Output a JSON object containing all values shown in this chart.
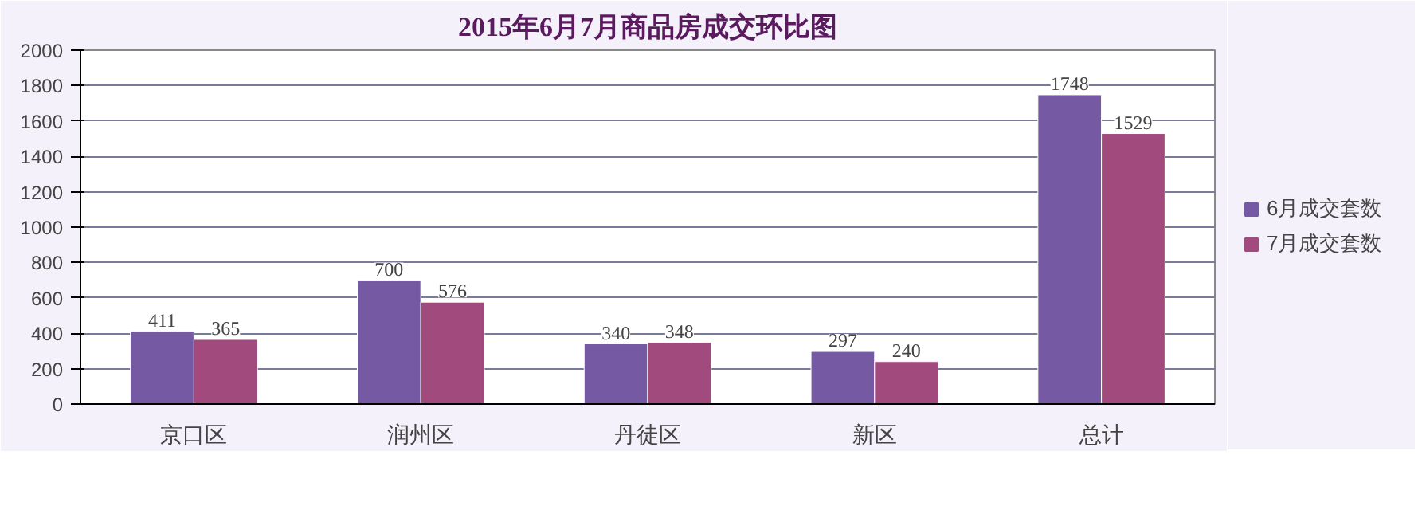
{
  "chart_data": {
    "type": "bar",
    "title": "2015年6月7月商品房成交环比图",
    "categories": [
      "京口区",
      "润州区",
      "丹徒区",
      "新区",
      "总计"
    ],
    "series": [
      {
        "name": "6月成交套数",
        "color": "#7559a3",
        "values": [
          411,
          700,
          340,
          297,
          1748
        ]
      },
      {
        "name": "7月成交套数",
        "color": "#a04a7e",
        "values": [
          365,
          576,
          348,
          240,
          1529
        ]
      }
    ],
    "ylim": [
      0,
      2000
    ],
    "yticks": [
      0,
      200,
      400,
      600,
      800,
      1000,
      1200,
      1400,
      1600,
      1800,
      2000
    ],
    "grid": "y",
    "legend": "right",
    "data_labels": true
  }
}
